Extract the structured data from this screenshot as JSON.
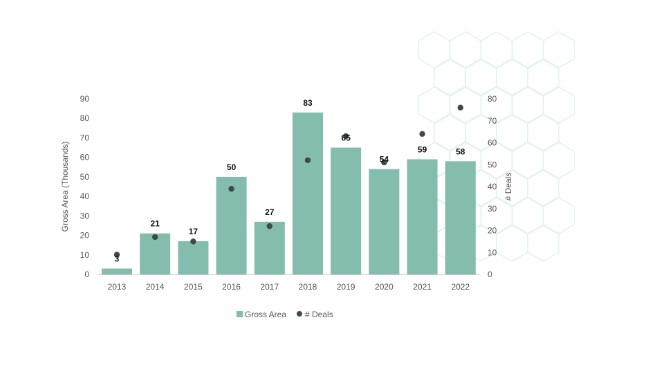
{
  "chart_data": {
    "type": "bar",
    "categories": [
      "2013",
      "2014",
      "2015",
      "2016",
      "2017",
      "2018",
      "2019",
      "2020",
      "2021",
      "2022"
    ],
    "series": [
      {
        "name": "Gross Area",
        "type": "bar",
        "axis": "left",
        "values": [
          3,
          21,
          17,
          50,
          27,
          83,
          65,
          54,
          59,
          58
        ]
      },
      {
        "name": "# Deals",
        "type": "scatter",
        "axis": "right",
        "values": [
          9,
          17,
          15,
          39,
          22,
          52,
          63,
          51,
          64,
          76
        ]
      }
    ],
    "data_labels": [
      "3",
      "21",
      "17",
      "50",
      "27",
      "83",
      "65",
      "54",
      "59",
      "58"
    ],
    "y_left": {
      "label": "Gross Area (Thousands)",
      "min": 0,
      "max": 90,
      "step": 10,
      "ticks": [
        "0",
        "10",
        "20",
        "30",
        "40",
        "50",
        "60",
        "70",
        "80",
        "90"
      ]
    },
    "y_right": {
      "label": "# Deals",
      "min": 0,
      "max": 80,
      "step": 10,
      "ticks": [
        "0",
        "10",
        "20",
        "30",
        "40",
        "50",
        "60",
        "70",
        "80"
      ]
    },
    "legend_position": "bottom",
    "colors": {
      "bar": "#84bcad",
      "dot": "#3c4a48",
      "axis": "#cccccc",
      "pattern": "#e0f2ec"
    }
  }
}
